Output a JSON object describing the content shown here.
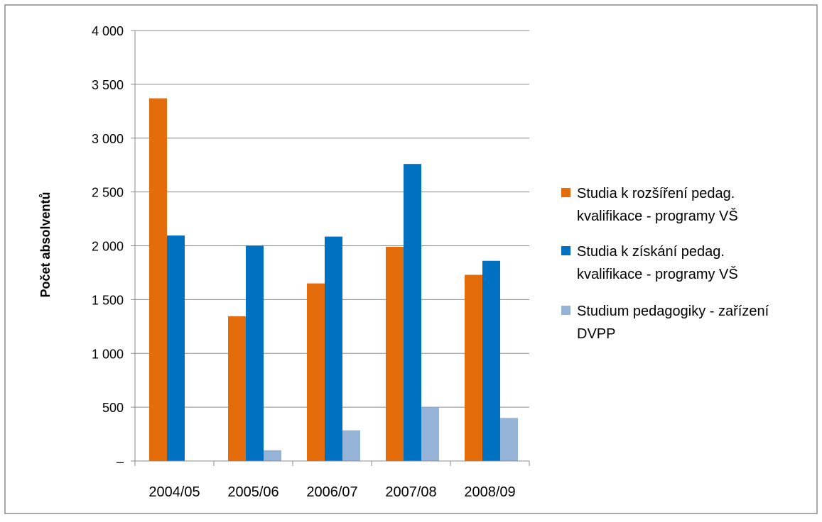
{
  "chart_data": {
    "type": "bar",
    "title": "",
    "xlabel": "",
    "ylabel": "Počet absolventů",
    "ylim": [
      0,
      4000
    ],
    "yticks": [
      {
        "value": 0,
        "label": "–"
      },
      {
        "value": 500,
        "label": "500"
      },
      {
        "value": 1000,
        "label": "1 000"
      },
      {
        "value": 1500,
        "label": "1 500"
      },
      {
        "value": 2000,
        "label": "2 000"
      },
      {
        "value": 2500,
        "label": "2 500"
      },
      {
        "value": 3000,
        "label": "3 000"
      },
      {
        "value": 3500,
        "label": "3 500"
      },
      {
        "value": 4000,
        "label": "4 000"
      }
    ],
    "grid": true,
    "legend_position": "right",
    "categories": [
      "2004/05",
      "2005/06",
      "2006/07",
      "2007/08",
      "2008/09"
    ],
    "series": [
      {
        "name": "Studia k rozšíření pedag. kvalifikace - programy VŠ",
        "legend_lines": [
          "Studia k rozšíření pedag.",
          "kvalifikace - programy VŠ"
        ],
        "color": "#E46C0A",
        "values": [
          3370,
          1345,
          1650,
          1990,
          1730
        ]
      },
      {
        "name": "Studia k získání pedag. kvalifikace - programy VŠ",
        "legend_lines": [
          "Studia k získání pedag.",
          "kvalifikace - programy VŠ"
        ],
        "color": "#0070C0",
        "values": [
          2095,
          2000,
          2085,
          2760,
          1860
        ]
      },
      {
        "name": "Studium pedagogiky - zařízení DVPP",
        "legend_lines": [
          "Studium pedagogiky - zařízení",
          "DVPP"
        ],
        "color": "#95B3D7",
        "values": [
          0,
          100,
          285,
          500,
          400
        ]
      }
    ]
  }
}
